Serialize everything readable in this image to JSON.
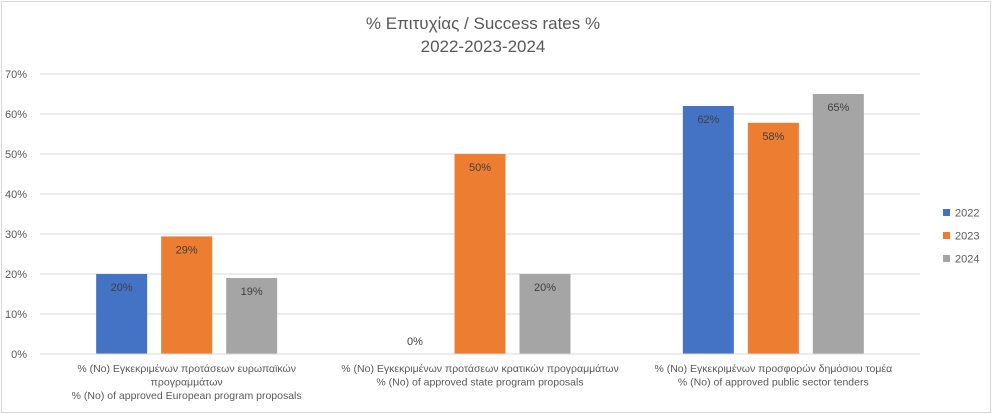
{
  "chart_data": {
    "type": "bar",
    "title": "% Επιτυχίας / Success rates %",
    "subtitle": "2022-2023-2024",
    "categories": [
      [
        "% (Νο) Εγκεκριμένων προτάσεων ευρωπαϊκών",
        "προγραμμάτων",
        "% (No) of approved European program proposals"
      ],
      [
        "% (Νο) Εγκεκριμένων προτάσεων κρατικών προγραμμάτων",
        "% (No) of approved state program proposals"
      ],
      [
        "% (Νο) Εγκεκριμένων προσφορών δημόσιου τομέα",
        "% (No) of approved public sector tenders"
      ]
    ],
    "series": [
      {
        "name": "2022",
        "color": "#4472c4",
        "values": [
          20,
          0,
          62
        ],
        "labels": [
          "20%",
          "0%",
          "62%"
        ]
      },
      {
        "name": "2023",
        "color": "#ed7d31",
        "values": [
          29.4,
          50,
          57.8
        ],
        "labels": [
          "29%",
          "50%",
          "58%"
        ]
      },
      {
        "name": "2024",
        "color": "#a5a5a5",
        "values": [
          19,
          20,
          65
        ],
        "labels": [
          "19%",
          "20%",
          "65%"
        ]
      }
    ],
    "ylim": [
      0,
      70
    ],
    "yticks": [
      "0%",
      "10%",
      "20%",
      "30%",
      "40%",
      "50%",
      "60%",
      "70%"
    ],
    "grid": true,
    "legend_position": "right"
  }
}
